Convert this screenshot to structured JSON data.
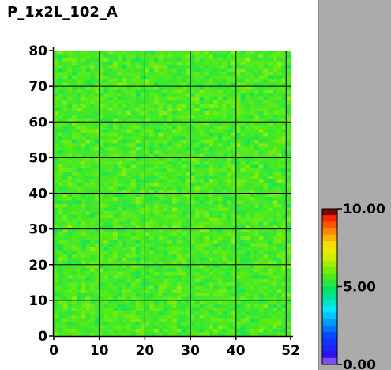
{
  "chart_data": {
    "type": "heatmap",
    "title": "P_1x2L_102_A",
    "xlabel": "",
    "ylabel": "",
    "x_range": [
      0,
      52
    ],
    "y_range": [
      0,
      80
    ],
    "x_ticks": [
      "0",
      "10",
      "20",
      "30",
      "40",
      "52"
    ],
    "y_ticks": [
      "0",
      "10",
      "20",
      "30",
      "40",
      "50",
      "60",
      "70",
      "80"
    ],
    "grid_x": [
      10,
      20,
      30,
      40,
      51
    ],
    "grid_y": [
      10,
      20,
      30,
      40,
      50,
      60,
      70
    ],
    "n_cols": 52,
    "n_rows": 80,
    "cell_value_typical": 5.6,
    "cell_value_range": [
      4.8,
      6.8
    ],
    "colorbar": {
      "min": 0,
      "max": 10,
      "labels": [
        "10.00",
        "5.00",
        "0.00"
      ],
      "label_values": [
        10,
        5,
        0
      ]
    },
    "colors": {
      "side_panel": "#ababab",
      "grid": "#000000",
      "cell_base": "#56e81a"
    }
  }
}
